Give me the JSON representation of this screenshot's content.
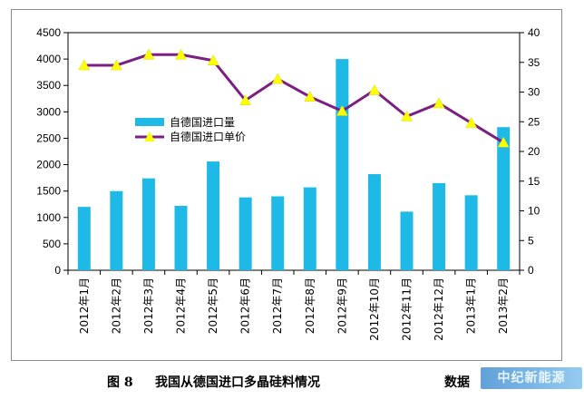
{
  "chart_data": {
    "type": "bar+line",
    "categories": [
      "2012年1月",
      "2012年2月",
      "2012年3月",
      "2012年4月",
      "2012年5月",
      "2012年6月",
      "2012年7月",
      "2012年8月",
      "2012年9月",
      "2012年10月",
      "2012年11月",
      "2012年12月",
      "2013年1月",
      "2013年2月"
    ],
    "series": [
      {
        "name": "自德国进口量",
        "type": "bar",
        "axis": "left",
        "color": "#1fb9e8",
        "values": [
          1200,
          1500,
          1740,
          1220,
          2060,
          1380,
          1400,
          1570,
          4000,
          1820,
          1110,
          1650,
          1420,
          2710
        ]
      },
      {
        "name": "自德国进口单价",
        "type": "line",
        "axis": "right",
        "color": "#7b1f82",
        "marker_color": "#ffff00",
        "values": [
          34.5,
          34.5,
          36.3,
          36.3,
          35.3,
          28.6,
          32.2,
          29.2,
          26.8,
          30.3,
          25.9,
          28.1,
          24.8,
          21.5
        ]
      }
    ],
    "left_axis": {
      "min": 0,
      "max": 4500,
      "ticks": [
        0,
        500,
        1000,
        1500,
        2000,
        2500,
        3000,
        3500,
        4000,
        4500
      ]
    },
    "right_axis": {
      "min": 0,
      "max": 40,
      "ticks": [
        0,
        5,
        10,
        15,
        20,
        25,
        30,
        35,
        40
      ]
    },
    "legend_position": "middle-left"
  },
  "caption": {
    "figure": "图 8",
    "title": "我国从德国进口多晶硅料情况",
    "source": "数据"
  },
  "watermark": "中纪新能源"
}
